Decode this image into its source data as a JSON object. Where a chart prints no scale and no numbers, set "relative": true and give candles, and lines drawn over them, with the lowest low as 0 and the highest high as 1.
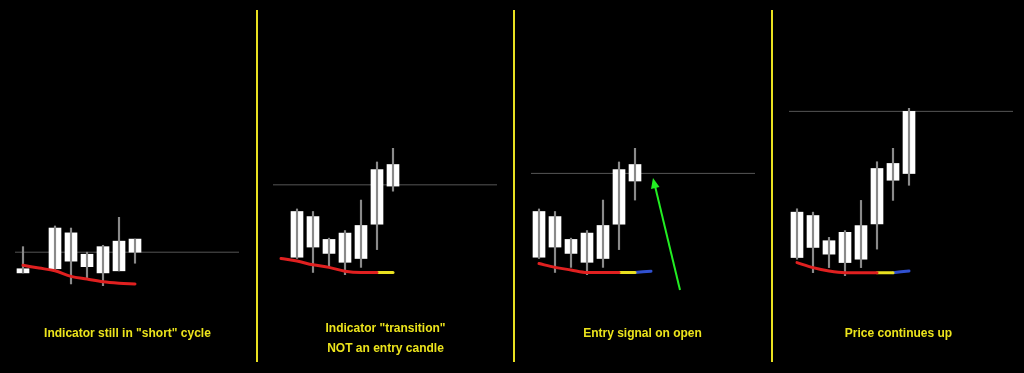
{
  "chart_data": [
    {
      "type": "candlestick",
      "relative": true,
      "color": "#ffffff",
      "xlabel": "Indicator still in \"short\" cycle",
      "categories": [
        null,
        null,
        null,
        null,
        null,
        null,
        null,
        null,
        null,
        null,
        null,
        null,
        null,
        null
      ],
      "ohlc": [
        [
          0.19,
          0.57,
          0.19,
          0.25
        ],
        null,
        [
          0.25,
          0.87,
          0.22,
          0.84
        ],
        [
          0.36,
          0.84,
          0.03,
          0.77
        ],
        [
          0.28,
          0.49,
          0.12,
          0.46
        ],
        [
          0.19,
          0.59,
          0,
          0.57
        ],
        [
          0.22,
          1,
          0.22,
          0.65
        ],
        [
          0.49,
          0.68,
          0.33,
          0.68
        ],
        null,
        null,
        null,
        null,
        null,
        null
      ],
      "series": [
        {
          "type": "line",
          "color": "#e02020",
          "values": [
            0.3,
            0.26,
            0.22,
            0.14,
            0.1,
            0.06,
            0.04,
            0.03,
            null,
            null,
            null,
            null,
            null,
            null
          ]
        }
      ],
      "ref_lines": [
        {
          "axis": "y",
          "value": 0.49,
          "color": "#555555"
        }
      ]
    },
    {
      "type": "candlestick",
      "relative": true,
      "color": "#ffffff",
      "xlabel": "Indicator \"transition\"\nNOT an entry candle",
      "categories": [
        null,
        null,
        null,
        null,
        null,
        null,
        null,
        null,
        null,
        null,
        null,
        null,
        null,
        null
      ],
      "ohlc": [
        null,
        [
          0.14,
          0.52,
          0.13,
          0.5
        ],
        [
          0.22,
          0.5,
          0.02,
          0.46
        ],
        [
          0.17,
          0.29,
          0.06,
          0.28
        ],
        [
          0.1,
          0.35,
          0,
          0.33
        ],
        [
          0.13,
          0.59,
          0.06,
          0.39
        ],
        [
          0.4,
          0.89,
          0.2,
          0.83
        ],
        [
          0.7,
          1,
          0.66,
          0.87
        ],
        null,
        null,
        null,
        null,
        null,
        null
      ],
      "series": [
        {
          "type": "line",
          "color": "#e02020",
          "values": [
            0.13,
            0.11,
            0.08,
            0.06,
            0.03,
            0.02,
            0.02,
            null,
            null,
            null,
            null,
            null,
            null,
            null
          ]
        },
        {
          "type": "line",
          "color": "#e8e020",
          "values": [
            null,
            null,
            null,
            null,
            null,
            null,
            0.02,
            0.02,
            null,
            null,
            null,
            null,
            null,
            null
          ]
        }
      ],
      "ref_lines": [
        {
          "axis": "y",
          "value": 0.71,
          "color": "#555555"
        }
      ]
    },
    {
      "type": "candlestick",
      "relative": true,
      "color": "#ffffff",
      "xlabel": "Entry signal on open",
      "categories": [
        null,
        null,
        null,
        null,
        null,
        null,
        null,
        null,
        null,
        null,
        null,
        null,
        null,
        null
      ],
      "ohlc": [
        [
          0.14,
          0.52,
          0.13,
          0.5
        ],
        [
          0.22,
          0.5,
          0.02,
          0.46
        ],
        [
          0.17,
          0.29,
          0.06,
          0.28
        ],
        [
          0.1,
          0.35,
          0,
          0.33
        ],
        [
          0.13,
          0.59,
          0.06,
          0.39
        ],
        [
          0.4,
          0.89,
          0.2,
          0.83
        ],
        [
          0.74,
          1,
          0.59,
          0.87
        ],
        null,
        null,
        null,
        null,
        null,
        null,
        null
      ],
      "series": [
        {
          "type": "line",
          "color": "#e02020",
          "values": [
            0.09,
            0.06,
            0.04,
            0.02,
            0.02,
            0.02,
            null,
            null,
            null,
            null,
            null,
            null,
            null,
            null
          ]
        },
        {
          "type": "line",
          "color": "#e8e020",
          "values": [
            null,
            null,
            null,
            null,
            null,
            0.02,
            0.02,
            null,
            null,
            null,
            null,
            null,
            null,
            null
          ]
        },
        {
          "type": "line",
          "color": "#3050d0",
          "values": [
            null,
            null,
            null,
            null,
            null,
            null,
            0.02,
            0.03,
            null,
            null,
            null,
            null,
            null,
            null
          ]
        }
      ],
      "ref_lines": [
        {
          "axis": "y",
          "value": 0.8,
          "color": "#555555"
        }
      ]
    },
    {
      "type": "candlestick",
      "relative": true,
      "color": "#ffffff",
      "xlabel": "Price continues up",
      "categories": [
        null,
        null,
        null,
        null,
        null,
        null,
        null,
        null,
        null,
        null,
        null,
        null,
        null,
        null
      ],
      "ohlc": [
        [
          0.11,
          0.4,
          0.1,
          0.38
        ],
        [
          0.17,
          0.38,
          0.02,
          0.36
        ],
        [
          0.13,
          0.23,
          0.05,
          0.21
        ],
        [
          0.08,
          0.27,
          0,
          0.26
        ],
        [
          0.1,
          0.45,
          0.05,
          0.3
        ],
        [
          0.31,
          0.68,
          0.16,
          0.64
        ],
        [
          0.57,
          0.76,
          0.45,
          0.67
        ],
        [
          0.61,
          1,
          0.54,
          0.98
        ],
        null,
        null,
        null,
        null,
        null,
        null
      ],
      "series": [
        {
          "type": "line",
          "color": "#e02020",
          "values": [
            0.08,
            0.05,
            0.03,
            0.02,
            0.02,
            0.02,
            null,
            null,
            null,
            null,
            null,
            null,
            null,
            null
          ]
        },
        {
          "type": "line",
          "color": "#e8e020",
          "values": [
            null,
            null,
            null,
            null,
            null,
            0.02,
            0.02,
            null,
            null,
            null,
            null,
            null,
            null,
            null
          ]
        },
        {
          "type": "line",
          "color": "#3050d0",
          "values": [
            null,
            null,
            null,
            null,
            null,
            null,
            0.02,
            0.03,
            null,
            null,
            null,
            null,
            null,
            null
          ]
        }
      ],
      "ref_lines": [
        {
          "axis": "y",
          "value": 0.98,
          "color": "#555555"
        }
      ]
    }
  ]
}
